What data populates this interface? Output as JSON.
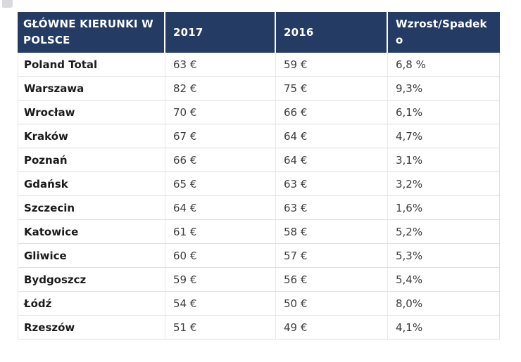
{
  "colors": {
    "header_bg": "#243b64",
    "header_text": "#ffffff",
    "row_border": "#dedede",
    "column_border": "#e9e9e9",
    "name_text": "#1b1b1b",
    "value_text": "#3d3d3d",
    "page_bg": "#ffffff"
  },
  "table": {
    "columns": [
      {
        "id": "destination",
        "label": "GŁÓWNE KIERUNKI W POLSCE"
      },
      {
        "id": "y2017",
        "label": "2017"
      },
      {
        "id": "y2016",
        "label": "2016"
      },
      {
        "id": "change",
        "label": "Wzrost/Spadek o"
      }
    ],
    "rows": [
      {
        "name": "Poland Total",
        "y2017": "63 €",
        "y2016": "59 €",
        "change": "6,8 %"
      },
      {
        "name": "Warszawa",
        "y2017": "82 €",
        "y2016": "75 €",
        "change": "9,3%"
      },
      {
        "name": "Wrocław",
        "y2017": "70 €",
        "y2016": "66 €",
        "change": "6,1%"
      },
      {
        "name": "Kraków",
        "y2017": "67 €",
        "y2016": "64 €",
        "change": "4,7%"
      },
      {
        "name": "Poznań",
        "y2017": "66 €",
        "y2016": "64 €",
        "change": "3,1%"
      },
      {
        "name": "Gdańsk",
        "y2017": "65 €",
        "y2016": "63 €",
        "change": "3,2%"
      },
      {
        "name": "Szczecin",
        "y2017": "64 €",
        "y2016": "63 €",
        "change": "1,6%"
      },
      {
        "name": "Katowice",
        "y2017": "61 €",
        "y2016": "58 €",
        "change": "5,2%"
      },
      {
        "name": "Gliwice",
        "y2017": "60 €",
        "y2016": "57 €",
        "change": "5,3%"
      },
      {
        "name": "Bydgoszcz",
        "y2017": "59 €",
        "y2016": "56 €",
        "change": "5,4%"
      },
      {
        "name": "Łódź",
        "y2017": "54 €",
        "y2016": "50 €",
        "change": "8,0%"
      },
      {
        "name": "Rzeszów",
        "y2017": "51 €",
        "y2016": "49 €",
        "change": "4,1%"
      }
    ]
  }
}
